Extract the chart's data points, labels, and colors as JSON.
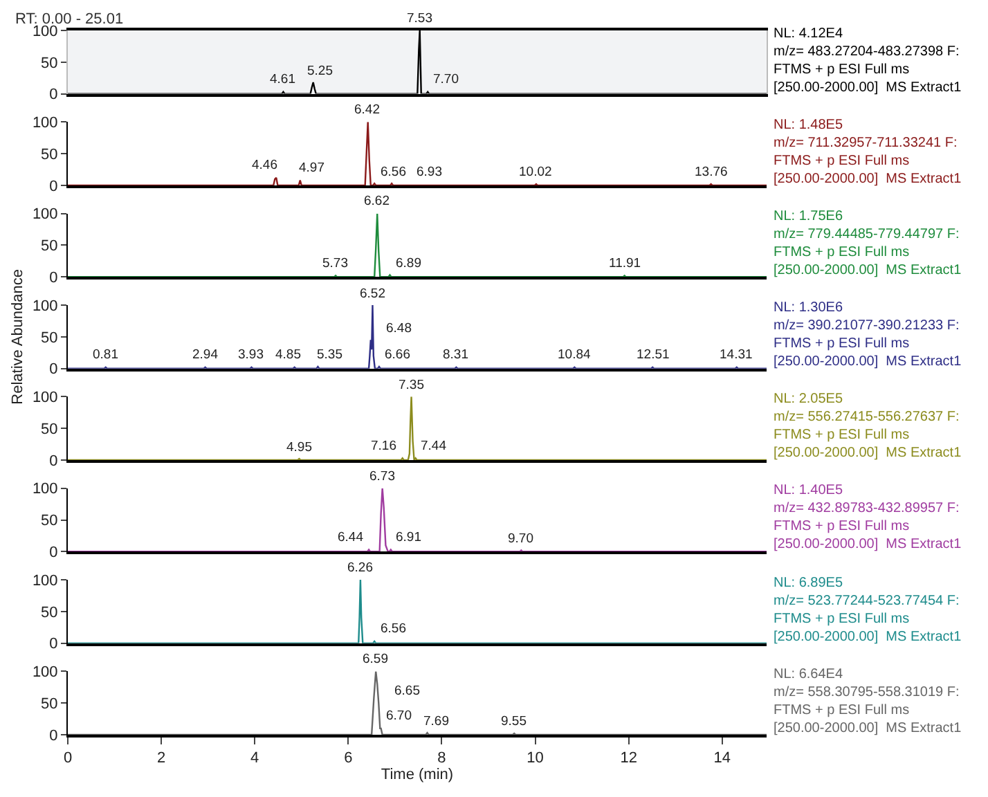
{
  "chart_data": [
    {
      "type": "line",
      "title": "RT: 0.00 - 25.01",
      "xlim": [
        0,
        14.95
      ],
      "xticks": [
        0,
        2,
        4,
        6,
        8,
        10,
        12,
        14
      ],
      "ylim": [
        0,
        100
      ],
      "yticks": [
        0,
        50,
        100
      ],
      "tick_labels": "y",
      "grid": false,
      "marker": "none",
      "line_style": "solid",
      "series": [
        {
          "color": "#000000",
          "x": [
            0,
            4.58,
            4.61,
            4.64,
            5.19,
            5.22,
            5.25,
            5.28,
            5.31,
            7.48,
            7.51,
            7.53,
            7.56,
            7.67,
            7.7,
            7.73,
            14.95
          ],
          "values": [
            0,
            0,
            3,
            0,
            0,
            10,
            18,
            8,
            0,
            0,
            70,
            100,
            0,
            0,
            3,
            0,
            0
          ]
        }
      ],
      "annotations": [
        {
          "text": "4.61",
          "x": 4.61,
          "y": 3
        },
        {
          "text": "5.25",
          "x": 5.25,
          "y": 18
        },
        {
          "text": "7.53",
          "x": 7.53,
          "y": 100
        },
        {
          "text": "7.70",
          "x": 7.7,
          "y": 3
        },
        "NL: 4.12E4",
        "m/z= 483.27204-483.27398 F:",
        "FTMS + p ESI Full ms",
        "[250.00-2000.00]  MS Extract1"
      ]
    },
    {
      "type": "line",
      "xlim": [
        0,
        14.95
      ],
      "xticks": [
        0,
        2,
        4,
        6,
        8,
        10,
        12,
        14
      ],
      "ylim": [
        0,
        100
      ],
      "yticks": [
        0,
        50,
        100
      ],
      "tick_labels": "y",
      "grid": false,
      "marker": "none",
      "line_style": "solid",
      "series": [
        {
          "color": "#8b1a1a",
          "x": [
            0,
            4.4,
            4.43,
            4.46,
            4.49,
            4.94,
            4.97,
            5.0,
            6.36,
            6.39,
            6.42,
            6.45,
            6.48,
            6.53,
            6.56,
            6.59,
            6.9,
            6.93,
            6.96,
            9.99,
            10.02,
            10.05,
            13.73,
            13.76,
            13.79,
            14.95
          ],
          "values": [
            0,
            0,
            10,
            12,
            0,
            0,
            8,
            0,
            0,
            50,
            100,
            40,
            0,
            0,
            3,
            0,
            0,
            3,
            0,
            0,
            2,
            0,
            0,
            2,
            0,
            0
          ]
        }
      ],
      "annotations": [
        {
          "text": "4.46",
          "x": 4.46,
          "y": 12
        },
        {
          "text": "4.97",
          "x": 4.97,
          "y": 8
        },
        {
          "text": "6.42",
          "x": 6.42,
          "y": 100
        },
        {
          "text": "6.56",
          "x": 6.56,
          "y": 3
        },
        {
          "text": "6.93",
          "x": 6.93,
          "y": 3
        },
        {
          "text": "10.02",
          "x": 10.02,
          "y": 2
        },
        {
          "text": "13.76",
          "x": 13.76,
          "y": 2
        },
        "NL: 1.48E5",
        "m/z= 711.32957-711.33241 F:",
        "FTMS + p ESI Full ms",
        "[250.00-2000.00]  MS Extract1"
      ]
    },
    {
      "type": "line",
      "xlim": [
        0,
        14.95
      ],
      "xticks": [
        0,
        2,
        4,
        6,
        8,
        10,
        12,
        14
      ],
      "ylim": [
        0,
        100
      ],
      "yticks": [
        0,
        50,
        100
      ],
      "tick_labels": "y",
      "grid": false,
      "marker": "none",
      "line_style": "solid",
      "series": [
        {
          "color": "#1e8c3c",
          "x": [
            0,
            5.7,
            5.73,
            5.76,
            6.56,
            6.59,
            6.62,
            6.65,
            6.68,
            6.86,
            6.89,
            6.92,
            11.88,
            11.91,
            11.94,
            14.95
          ],
          "values": [
            0,
            0,
            2,
            0,
            0,
            45,
            100,
            40,
            0,
            0,
            3,
            0,
            0,
            2,
            0,
            0
          ]
        }
      ],
      "annotations": [
        {
          "text": "5.73",
          "x": 5.73,
          "y": 2
        },
        {
          "text": "6.62",
          "x": 6.62,
          "y": 100
        },
        {
          "text": "6.89",
          "x": 6.89,
          "y": 3
        },
        {
          "text": "11.91",
          "x": 11.91,
          "y": 2
        },
        "NL: 1.75E6",
        "m/z= 779.44485-779.44797 F:",
        "FTMS + p ESI Full ms",
        "[250.00-2000.00]  MS Extract1"
      ]
    },
    {
      "type": "line",
      "ylabel": "Relative Abundance",
      "xlim": [
        0,
        14.95
      ],
      "xticks": [
        0,
        2,
        4,
        6,
        8,
        10,
        12,
        14
      ],
      "ylim": [
        0,
        100
      ],
      "yticks": [
        0,
        50,
        100
      ],
      "tick_labels": "y",
      "grid": false,
      "marker": "none",
      "line_style": "solid",
      "series": [
        {
          "color": "#2e2e86",
          "x": [
            0,
            0.78,
            0.81,
            0.84,
            2.91,
            2.94,
            2.97,
            3.9,
            3.93,
            3.96,
            4.82,
            4.85,
            4.88,
            5.32,
            5.35,
            5.38,
            6.44,
            6.46,
            6.48,
            6.5,
            6.52,
            6.54,
            6.57,
            6.63,
            6.66,
            6.69,
            8.28,
            8.31,
            8.34,
            10.81,
            10.84,
            10.87,
            12.48,
            12.51,
            12.54,
            14.28,
            14.31,
            14.34,
            14.95
          ],
          "values": [
            0,
            0,
            2,
            0,
            0,
            2,
            0,
            0,
            2,
            0,
            0,
            2,
            0,
            0,
            3,
            0,
            0,
            20,
            45,
            30,
            100,
            20,
            0,
            0,
            3,
            0,
            0,
            2,
            0,
            0,
            2,
            0,
            0,
            2,
            0,
            0,
            2,
            0,
            0
          ]
        }
      ],
      "annotations": [
        {
          "text": "0.81",
          "x": 0.81,
          "y": 2
        },
        {
          "text": "2.94",
          "x": 2.94,
          "y": 2
        },
        {
          "text": "3.93",
          "x": 3.93,
          "y": 2
        },
        {
          "text": "4.85",
          "x": 4.85,
          "y": 2
        },
        {
          "text": "5.35",
          "x": 5.35,
          "y": 3
        },
        {
          "text": "6.48",
          "x": 6.48,
          "y": 45
        },
        {
          "text": "6.52",
          "x": 6.52,
          "y": 100
        },
        {
          "text": "6.66",
          "x": 6.66,
          "y": 3
        },
        {
          "text": "8.31",
          "x": 8.31,
          "y": 2
        },
        {
          "text": "10.84",
          "x": 10.84,
          "y": 2
        },
        {
          "text": "12.51",
          "x": 12.51,
          "y": 2
        },
        {
          "text": "14.31",
          "x": 14.31,
          "y": 2
        },
        "NL: 1.30E6",
        "m/z= 390.21077-390.21233 F:",
        "FTMS + p ESI Full ms",
        "[250.00-2000.00]  MS Extract1"
      ]
    },
    {
      "type": "line",
      "xlim": [
        0,
        14.95
      ],
      "xticks": [
        0,
        2,
        4,
        6,
        8,
        10,
        12,
        14
      ],
      "ylim": [
        0,
        100
      ],
      "yticks": [
        0,
        50,
        100
      ],
      "tick_labels": "y",
      "grid": false,
      "marker": "none",
      "line_style": "solid",
      "series": [
        {
          "color": "#8c8c1e",
          "x": [
            0,
            4.92,
            4.95,
            4.98,
            7.13,
            7.16,
            7.19,
            7.28,
            7.31,
            7.33,
            7.35,
            7.38,
            7.41,
            7.44,
            7.47,
            14.95
          ],
          "values": [
            0,
            0,
            2,
            0,
            0,
            3,
            0,
            0,
            10,
            60,
            100,
            30,
            0,
            3,
            0,
            0
          ]
        }
      ],
      "annotations": [
        {
          "text": "4.95",
          "x": 4.95,
          "y": 2
        },
        {
          "text": "7.16",
          "x": 7.16,
          "y": 3
        },
        {
          "text": "7.35",
          "x": 7.35,
          "y": 100
        },
        {
          "text": "7.44",
          "x": 7.44,
          "y": 3
        },
        "NL: 2.05E5",
        "m/z= 556.27415-556.27637 F:",
        "FTMS + p ESI Full ms",
        "[250.00-2000.00]  MS Extract1"
      ]
    },
    {
      "type": "line",
      "xlim": [
        0,
        14.95
      ],
      "xticks": [
        0,
        2,
        4,
        6,
        8,
        10,
        12,
        14
      ],
      "ylim": [
        0,
        100
      ],
      "yticks": [
        0,
        50,
        100
      ],
      "tick_labels": "y",
      "grid": false,
      "marker": "none",
      "line_style": "solid",
      "series": [
        {
          "color": "#a03ca0",
          "x": [
            0,
            6.41,
            6.44,
            6.47,
            6.67,
            6.7,
            6.73,
            6.76,
            6.8,
            6.85,
            6.88,
            6.91,
            6.94,
            9.67,
            9.7,
            9.73,
            14.95
          ],
          "values": [
            0,
            0,
            3,
            0,
            0,
            60,
            100,
            70,
            10,
            0,
            0,
            3,
            0,
            0,
            2,
            0,
            0
          ]
        }
      ],
      "annotations": [
        {
          "text": "6.44",
          "x": 6.44,
          "y": 3
        },
        {
          "text": "6.73",
          "x": 6.73,
          "y": 100
        },
        {
          "text": "6.91",
          "x": 6.91,
          "y": 3
        },
        {
          "text": "9.70",
          "x": 9.7,
          "y": 2
        },
        "NL: 1.40E5",
        "m/z= 432.89783-432.89957 F:",
        "FTMS + p ESI Full ms",
        "[250.00-2000.00]  MS Extract1"
      ]
    },
    {
      "type": "line",
      "xlim": [
        0,
        14.95
      ],
      "xticks": [
        0,
        2,
        4,
        6,
        8,
        10,
        12,
        14
      ],
      "ylim": [
        0,
        100
      ],
      "yticks": [
        0,
        50,
        100
      ],
      "tick_labels": "y",
      "grid": false,
      "marker": "none",
      "line_style": "solid",
      "series": [
        {
          "color": "#1e8c8c",
          "x": [
            0,
            6.22,
            6.24,
            6.26,
            6.28,
            6.31,
            6.53,
            6.56,
            6.59,
            14.95
          ],
          "values": [
            0,
            0,
            40,
            100,
            40,
            0,
            0,
            3,
            0,
            0
          ]
        }
      ],
      "annotations": [
        {
          "text": "6.26",
          "x": 6.26,
          "y": 100
        },
        {
          "text": "6.56",
          "x": 6.56,
          "y": 3
        },
        "NL: 6.89E5",
        "m/z= 523.77244-523.77454 F:",
        "FTMS + p ESI Full ms",
        "[250.00-2000.00]  MS Extract1"
      ]
    },
    {
      "type": "line",
      "xlabel": "Time (min)",
      "xlim": [
        0,
        14.95
      ],
      "xticks": [
        0,
        2,
        4,
        6,
        8,
        10,
        12,
        14
      ],
      "ylim": [
        0,
        100
      ],
      "yticks": [
        0,
        50,
        100
      ],
      "grid": false,
      "marker": "none",
      "line_style": "solid",
      "series": [
        {
          "color": "#666666",
          "x": [
            0,
            6.5,
            6.55,
            6.59,
            6.62,
            6.65,
            6.68,
            6.7,
            6.73,
            7.66,
            7.69,
            7.72,
            9.52,
            9.55,
            9.58,
            14.95
          ],
          "values": [
            0,
            0,
            60,
            100,
            80,
            50,
            10,
            10,
            0,
            0,
            3,
            0,
            0,
            2,
            0,
            0
          ]
        }
      ],
      "annotations": [
        {
          "text": "6.59",
          "x": 6.59,
          "y": 100
        },
        {
          "text": "6.65",
          "x": 6.65,
          "y": 50
        },
        {
          "text": "6.70",
          "x": 6.7,
          "y": 10
        },
        {
          "text": "7.69",
          "x": 7.69,
          "y": 3
        },
        {
          "text": "9.55",
          "x": 9.55,
          "y": 2
        },
        "NL: 6.64E4",
        "m/z= 558.30795-558.31019 F:",
        "FTMS + p ESI Full ms",
        "[250.00-2000.00]  MS Extract1"
      ]
    }
  ]
}
